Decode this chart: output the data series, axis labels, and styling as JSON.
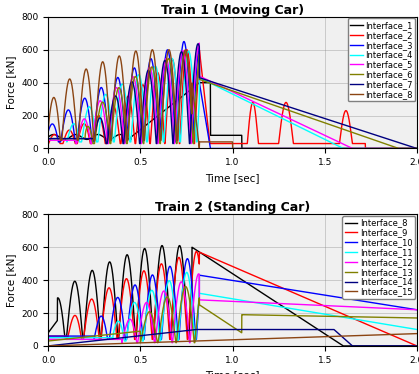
{
  "title1": "Train 1 (Moving Car)",
  "title2": "Train 2 (Standing Car)",
  "xlabel": "Time [sec]",
  "ylabel": "Force [kN]",
  "xlim": [
    0.0,
    2.0
  ],
  "ylim": [
    0,
    800
  ],
  "xticks": [
    0.0,
    0.5,
    1.0,
    1.5,
    2.0
  ],
  "yticks": [
    0,
    200,
    400,
    600,
    800
  ],
  "legend1": [
    "Interface_1",
    "Interface_2",
    "Interface_3",
    "Interface_4",
    "Interface_5",
    "Interface_6",
    "Interface_7",
    "Interface_8"
  ],
  "legend2": [
    "Interface_8",
    "Interface_9",
    "Interface_10",
    "Interface_11",
    "Interface_12",
    "Interface_13",
    "Interface_14",
    "Interface_15"
  ],
  "colors1": [
    "black",
    "red",
    "blue",
    "cyan",
    "magenta",
    "olive",
    "navy",
    "saddlebrown"
  ],
  "colors2": [
    "black",
    "red",
    "blue",
    "cyan",
    "magenta",
    "olive",
    "navy",
    "saddlebrown"
  ],
  "bg_color": "#f0f0f0",
  "linewidth": 1.0,
  "legend_fontsize": 6.0,
  "title_fontsize": 9,
  "label_fontsize": 7.5,
  "tick_fontsize": 6.5
}
